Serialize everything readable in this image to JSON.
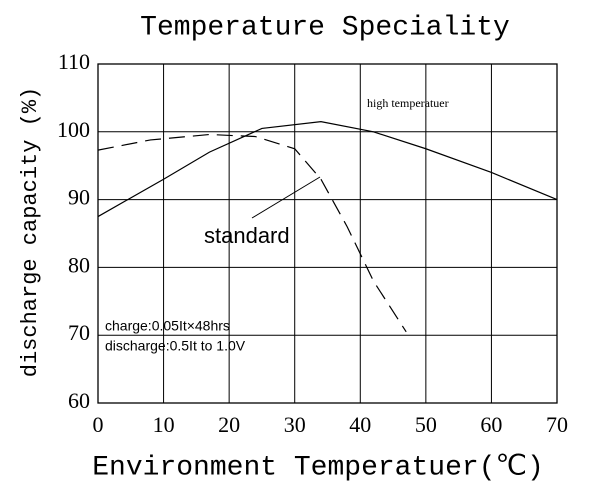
{
  "chart_data": {
    "type": "line",
    "title": "Temperature Speciality",
    "x_label": "Environment Temperatuer(℃)",
    "y_label": "discharge capacity (%)",
    "series": [
      {
        "name": "high temperatuer",
        "color": "#000000",
        "dash": false,
        "x": [
          0,
          10,
          17,
          25,
          34,
          42,
          50,
          60,
          70
        ],
        "values": [
          87.5,
          93,
          97,
          100.5,
          101.5,
          100,
          97.5,
          94,
          90
        ]
      },
      {
        "name": "standard",
        "color": "#000000",
        "dash": true,
        "x": [
          0,
          8,
          17,
          24,
          30,
          34,
          38,
          42,
          47
        ],
        "values": [
          97.3,
          98.8,
          99.6,
          99.3,
          97.5,
          93,
          86,
          78,
          70.5
        ]
      }
    ],
    "annotations": [
      "charge:0.05It×48hrs",
      "discharge:0.5It to 1.0V"
    ],
    "xlim": [
      0,
      70
    ],
    "xticks": [
      0,
      10,
      20,
      30,
      40,
      50,
      60,
      70
    ],
    "ylim": [
      60,
      110
    ],
    "yticks": [
      60,
      70,
      80,
      90,
      100,
      110
    ],
    "grid": true
  }
}
